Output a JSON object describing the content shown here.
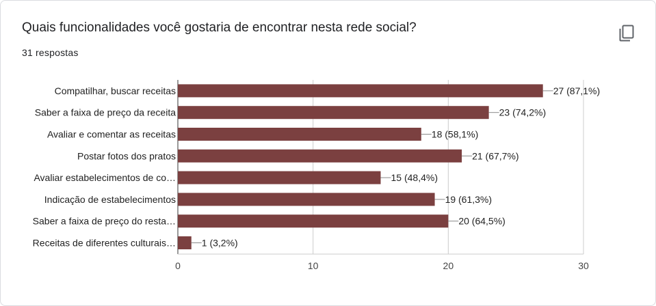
{
  "card": {
    "title": "Quais funcionalidades você gostaria de encontrar nesta rede social?",
    "responses": "31 respostas",
    "copy_icon": "copy-icon"
  },
  "chart_data": {
    "type": "bar",
    "orientation": "horizontal",
    "categories": [
      "Compatilhar, buscar receitas",
      "Saber a faixa de preço da receita",
      "Avaliar e comentar as receitas",
      "Postar fotos dos pratos",
      "Avaliar estabelecimentos de co…",
      "Indicação de estabelecimentos",
      "Saber a faixa de preço do resta…",
      "Receitas de diferentes culturais…"
    ],
    "values": [
      27,
      23,
      18,
      21,
      15,
      19,
      20,
      1
    ],
    "value_labels": [
      "27 (87,1%)",
      "23 (74,2%)",
      "18 (58,1%)",
      "21 (67,7%)",
      "15 (48,4%)",
      "19 (61,3%)",
      "20 (64,5%)",
      "1 (3,2%)"
    ],
    "xlim": [
      0,
      30
    ],
    "xticks": [
      0,
      10,
      20,
      30
    ],
    "grid": true,
    "bar_color": "#7b4040"
  }
}
